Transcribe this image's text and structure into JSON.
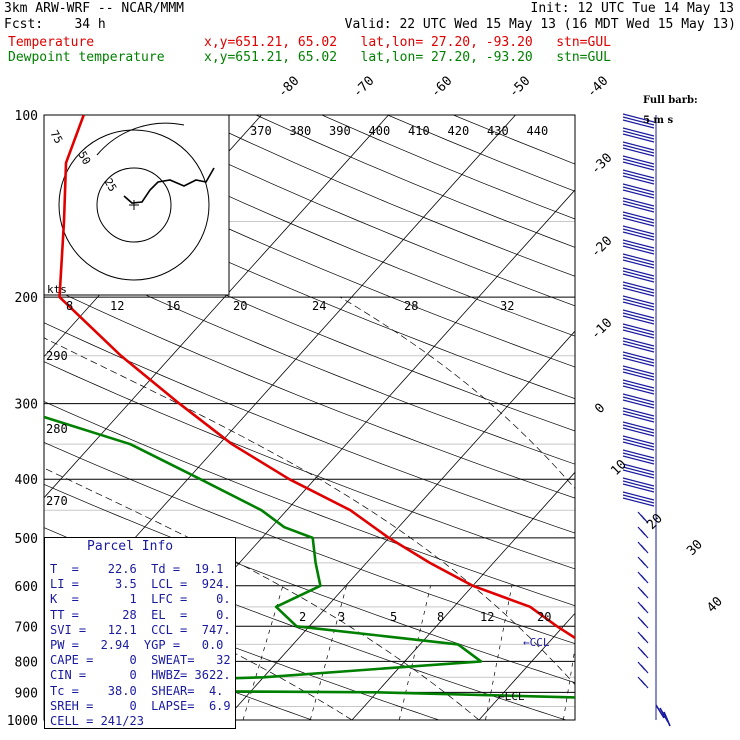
{
  "header": {
    "line1_left": "3km ARW-WRF -- NCAR/MMM",
    "line1_right": "Init: 12 UTC Tue 14 May 13",
    "line2_left": "Fcst:    34 h",
    "line2_right": "Valid: 22 UTC Wed 15 May 13 (16 MDT Wed 15 May 13)",
    "temp_label": "Temperature",
    "temp_info": "x,y=651.21, 65.02   lat,lon= 27.20, -93.20   stn=GUL",
    "dew_label": "Dewpoint temperature",
    "dew_info": "x,y=651.21, 65.02   lat,lon= 27.20, -93.20   stn=GUL",
    "barb_title": "Full barb:",
    "barb_units": "5 m s"
  },
  "chart_data": {
    "type": "line",
    "pressure_levels": [
      100,
      200,
      300,
      400,
      500,
      600,
      700,
      800,
      900,
      1000
    ],
    "isotherm_labels": [
      "-80",
      "-70",
      "-60",
      "-50",
      "-40",
      "-30",
      "-20",
      "-10",
      "0",
      "10",
      "20",
      "30",
      "40"
    ],
    "theta_labels_top": [
      "370",
      "380",
      "390",
      "400",
      "410",
      "420",
      "430",
      "440"
    ],
    "theta_labels_left": [
      "290",
      "280",
      "270"
    ],
    "mixing_ratio_labels": [
      "2",
      "3",
      "5",
      "8",
      "12",
      "20"
    ],
    "hodo_speed_labels": [
      "8",
      "12",
      "16",
      "20",
      "24",
      "28",
      "32"
    ],
    "hodo_ring_labels": [
      "75",
      "50",
      "25"
    ],
    "hodo_unit": "kts",
    "ccl_label": "CCL",
    "lcl_label": "LCL",
    "series": [
      {
        "name": "Temperature",
        "color": "#e00000",
        "points": [
          [
            100,
            -64
          ],
          [
            120,
            -62
          ],
          [
            150,
            -58
          ],
          [
            200,
            -53
          ],
          [
            250,
            -44
          ],
          [
            300,
            -36
          ],
          [
            350,
            -29
          ],
          [
            400,
            -22
          ],
          [
            450,
            -15
          ],
          [
            500,
            -10
          ],
          [
            550,
            -5
          ],
          [
            600,
            0
          ],
          [
            650,
            6
          ],
          [
            700,
            9.5
          ],
          [
            750,
            13
          ],
          [
            800,
            16.5
          ],
          [
            850,
            20
          ],
          [
            870,
            21
          ],
          [
            890,
            19
          ],
          [
            910,
            20
          ],
          [
            940,
            21
          ],
          [
            970,
            21.5
          ],
          [
            1000,
            23
          ]
        ]
      },
      {
        "name": "Dewpoint temperature",
        "color": "#008000",
        "points": [
          [
            100,
            -76
          ],
          [
            130,
            -81
          ],
          [
            150,
            -84
          ],
          [
            200,
            -79
          ],
          [
            230,
            -74
          ],
          [
            260,
            -66
          ],
          [
            300,
            -50
          ],
          [
            350,
            -37
          ],
          [
            400,
            -29
          ],
          [
            450,
            -22
          ],
          [
            480,
            -19
          ],
          [
            500,
            -16
          ],
          [
            550,
            -14
          ],
          [
            600,
            -12
          ],
          [
            650,
            -14
          ],
          [
            700,
            -11
          ],
          [
            750,
            3
          ],
          [
            800,
            6
          ],
          [
            850,
            -10
          ],
          [
            880,
            -32
          ],
          [
            890,
            -38
          ],
          [
            900,
            0
          ],
          [
            920,
            18
          ],
          [
            940,
            19
          ],
          [
            960,
            18.5
          ],
          [
            980,
            19
          ],
          [
            1000,
            19
          ]
        ]
      }
    ]
  },
  "parcel_info": {
    "title": "Parcel Info",
    "rows": [
      "T  =    22.6  Td =  19.1",
      "LI =     3.5  LCL =  924.",
      "K  =       1  LFC =    0.",
      "TT =      28  EL  =    0.",
      "SVI =   12.1  CCL =  747.",
      "PW =   2.94  YGP =   0.0",
      "CAPE =     0  SWEAT=   32",
      "CIN =      0  HWBZ= 3622.",
      "Tc =    38.0  SHEAR=  4.",
      "SREH =     0  LAPSE=  6.9",
      "CELL = 241/23"
    ]
  }
}
